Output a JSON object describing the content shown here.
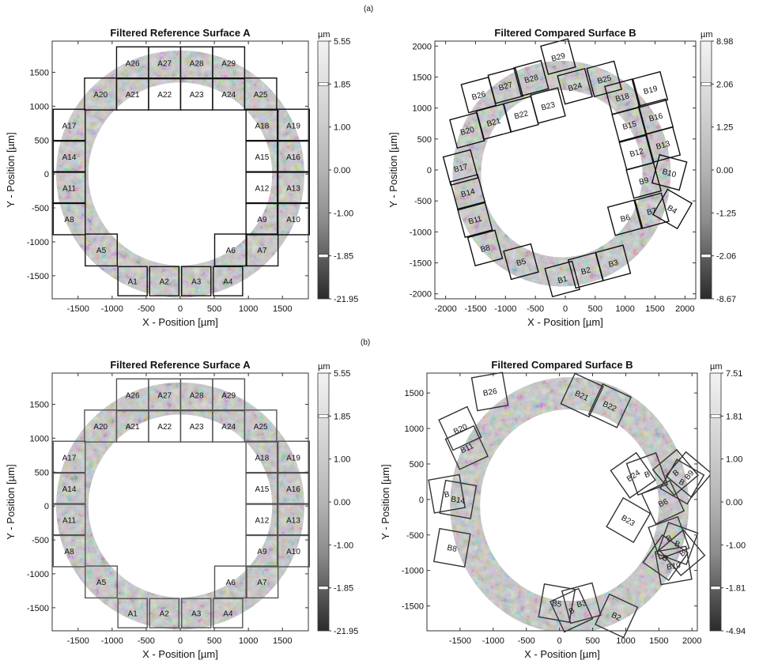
{
  "figure": {
    "label_a": "(a)",
    "label_b": "(b)"
  },
  "colorbar_unit": "µm",
  "axis_labels": {
    "x": "X - Position [µm]",
    "y": "Y - Position [µm]"
  },
  "chart_data": [
    {
      "id": "a-left",
      "type": "heatmap",
      "title": "Filtered Reference Surface A",
      "xlim": [
        -1880,
        1880
      ],
      "ylim": [
        -1840,
        1960
      ],
      "xticks": [
        -1500,
        -1000,
        -500,
        0,
        500,
        1000,
        1500
      ],
      "yticks": [
        -1500,
        -1000,
        -500,
        0,
        500,
        1000,
        1500
      ],
      "ring": {
        "inner_radius": 1350,
        "outer_radius": 1820
      },
      "colorbar": {
        "ticks": [
          "5.55",
          "1.85",
          "1.00",
          "0.00",
          "-1.00",
          "-1.85",
          "-21.95"
        ],
        "marker_top": 1,
        "marker_bottom": 5
      },
      "box_color": "#111",
      "boxes": [
        {
          "label": "A1",
          "cx": -700,
          "cy": -1580,
          "size": 430,
          "rot": 0
        },
        {
          "label": "A2",
          "cx": -235,
          "cy": -1580,
          "size": 430,
          "rot": 0
        },
        {
          "label": "A3",
          "cx": 235,
          "cy": -1580,
          "size": 430,
          "rot": 0
        },
        {
          "label": "A4",
          "cx": 700,
          "cy": -1580,
          "size": 430,
          "rot": 0
        },
        {
          "label": "A5",
          "cx": -1160,
          "cy": -1120,
          "size": 470,
          "rot": 0
        },
        {
          "label": "A6",
          "cx": 740,
          "cy": -1120,
          "size": 470,
          "rot": 0
        },
        {
          "label": "A7",
          "cx": 1200,
          "cy": -1120,
          "size": 470,
          "rot": 0
        },
        {
          "label": "A8",
          "cx": -1630,
          "cy": -660,
          "size": 470,
          "rot": 0
        },
        {
          "label": "A9",
          "cx": 1200,
          "cy": -660,
          "size": 470,
          "rot": 0
        },
        {
          "label": "A10",
          "cx": 1660,
          "cy": -660,
          "size": 470,
          "rot": 0
        },
        {
          "label": "A11",
          "cx": -1630,
          "cy": -200,
          "size": 470,
          "rot": 0
        },
        {
          "label": "A12",
          "cx": 1200,
          "cy": -200,
          "size": 470,
          "rot": 0
        },
        {
          "label": "A13",
          "cx": 1660,
          "cy": -200,
          "size": 470,
          "rot": 0
        },
        {
          "label": "A14",
          "cx": -1630,
          "cy": 260,
          "size": 470,
          "rot": 0
        },
        {
          "label": "A15",
          "cx": 1200,
          "cy": 260,
          "size": 470,
          "rot": 0
        },
        {
          "label": "A16",
          "cx": 1660,
          "cy": 260,
          "size": 470,
          "rot": 0
        },
        {
          "label": "A17",
          "cx": -1630,
          "cy": 720,
          "size": 470,
          "rot": 0
        },
        {
          "label": "A18",
          "cx": 1200,
          "cy": 720,
          "size": 470,
          "rot": 0
        },
        {
          "label": "A19",
          "cx": 1660,
          "cy": 720,
          "size": 470,
          "rot": 0
        },
        {
          "label": "A20",
          "cx": -1170,
          "cy": 1180,
          "size": 470,
          "rot": 0
        },
        {
          "label": "A21",
          "cx": -700,
          "cy": 1180,
          "size": 470,
          "rot": 0
        },
        {
          "label": "A22",
          "cx": -230,
          "cy": 1180,
          "size": 470,
          "rot": 0
        },
        {
          "label": "A23",
          "cx": 240,
          "cy": 1180,
          "size": 470,
          "rot": 0
        },
        {
          "label": "A24",
          "cx": 710,
          "cy": 1180,
          "size": 470,
          "rot": 0
        },
        {
          "label": "A25",
          "cx": 1180,
          "cy": 1180,
          "size": 470,
          "rot": 0
        },
        {
          "label": "A26",
          "cx": -700,
          "cy": 1640,
          "size": 470,
          "rot": 0
        },
        {
          "label": "A27",
          "cx": -230,
          "cy": 1640,
          "size": 470,
          "rot": 0
        },
        {
          "label": "A28",
          "cx": 240,
          "cy": 1640,
          "size": 470,
          "rot": 0
        },
        {
          "label": "A29",
          "cx": 710,
          "cy": 1640,
          "size": 470,
          "rot": 0
        }
      ]
    },
    {
      "id": "a-right",
      "type": "heatmap",
      "title": "Filtered Compared Surface B",
      "xlim": [
        -2180,
        2180
      ],
      "ylim": [
        -2080,
        2080
      ],
      "xticks": [
        -2000,
        -1500,
        -1000,
        -500,
        0,
        500,
        1000,
        1500,
        2000
      ],
      "yticks": [
        -2000,
        -1500,
        -1000,
        -500,
        0,
        500,
        1000,
        1500,
        2000
      ],
      "ring": {
        "inner_radius": 1350,
        "outer_radius": 1820,
        "cx": -60,
        "cy": -60
      },
      "colorbar": {
        "ticks": [
          "8.98",
          "2.06",
          "1.25",
          "0.00",
          "-1.25",
          "-2.06",
          "-8.67"
        ],
        "marker_top": 1,
        "marker_bottom": 5
      },
      "box_color": "#111",
      "boxes": [
        {
          "label": "B1",
          "cx": -50,
          "cy": -1760,
          "size": 470,
          "rot": 15
        },
        {
          "label": "B2",
          "cx": 340,
          "cy": -1620,
          "size": 470,
          "rot": 15
        },
        {
          "label": "B3",
          "cx": 800,
          "cy": -1500,
          "size": 470,
          "rot": 15
        },
        {
          "label": "B4",
          "cx": 1790,
          "cy": -630,
          "size": 470,
          "rot": -30
        },
        {
          "label": "B5",
          "cx": -740,
          "cy": -1480,
          "size": 470,
          "rot": 15
        },
        {
          "label": "B6",
          "cx": 1000,
          "cy": -770,
          "size": 470,
          "rot": 15
        },
        {
          "label": "B7",
          "cx": 1440,
          "cy": -660,
          "size": 470,
          "rot": 15
        },
        {
          "label": "B8",
          "cx": -1340,
          "cy": -1260,
          "size": 470,
          "rot": 15
        },
        {
          "label": "B9",
          "cx": 1310,
          "cy": -170,
          "size": 470,
          "rot": 15
        },
        {
          "label": "B10",
          "cx": 1740,
          "cy": -40,
          "size": 470,
          "rot": -15
        },
        {
          "label": "B11",
          "cx": -1510,
          "cy": -800,
          "size": 470,
          "rot": 15
        },
        {
          "label": "B12",
          "cx": 1190,
          "cy": 290,
          "size": 470,
          "rot": 15
        },
        {
          "label": "B13",
          "cx": 1630,
          "cy": 410,
          "size": 470,
          "rot": 15
        },
        {
          "label": "B14",
          "cx": -1630,
          "cy": -360,
          "size": 470,
          "rot": 15
        },
        {
          "label": "B15",
          "cx": 1070,
          "cy": 730,
          "size": 470,
          "rot": 15
        },
        {
          "label": "B16",
          "cx": 1510,
          "cy": 860,
          "size": 470,
          "rot": 15
        },
        {
          "label": "B17",
          "cx": -1750,
          "cy": 40,
          "size": 470,
          "rot": 15
        },
        {
          "label": "B18",
          "cx": 950,
          "cy": 1180,
          "size": 470,
          "rot": 15
        },
        {
          "label": "B19",
          "cx": 1420,
          "cy": 1300,
          "size": 470,
          "rot": 15
        },
        {
          "label": "B20",
          "cx": -1640,
          "cy": 640,
          "size": 470,
          "rot": 15
        },
        {
          "label": "B21",
          "cx": -1200,
          "cy": 780,
          "size": 470,
          "rot": 15
        },
        {
          "label": "B22",
          "cx": -740,
          "cy": 900,
          "size": 470,
          "rot": 15
        },
        {
          "label": "B23",
          "cx": -290,
          "cy": 1040,
          "size": 470,
          "rot": 15
        },
        {
          "label": "B24",
          "cx": 160,
          "cy": 1350,
          "size": 470,
          "rot": 15
        },
        {
          "label": "B25",
          "cx": 650,
          "cy": 1470,
          "size": 470,
          "rot": 15
        },
        {
          "label": "B26",
          "cx": -1450,
          "cy": 1210,
          "size": 470,
          "rot": 15
        },
        {
          "label": "B27",
          "cx": -1000,
          "cy": 1360,
          "size": 470,
          "rot": 15
        },
        {
          "label": "B28",
          "cx": -570,
          "cy": 1480,
          "size": 470,
          "rot": 15
        },
        {
          "label": "B29",
          "cx": -120,
          "cy": 1830,
          "size": 470,
          "rot": 15
        }
      ]
    },
    {
      "id": "b-left",
      "type": "heatmap",
      "title": "Filtered Reference Surface A",
      "xlim": [
        -1880,
        1880
      ],
      "ylim": [
        -1840,
        1960
      ],
      "xticks": [
        -1500,
        -1000,
        -500,
        0,
        500,
        1000,
        1500
      ],
      "yticks": [
        -1500,
        -1000,
        -500,
        0,
        500,
        1000,
        1500
      ],
      "ring": {
        "inner_radius": 1350,
        "outer_radius": 1820
      },
      "colorbar": {
        "ticks": [
          "5.55",
          "1.85",
          "1.00",
          "0.00",
          "-1.00",
          "-1.85",
          "-21.95"
        ],
        "marker_top": 1,
        "marker_bottom": 5
      },
      "box_color": "#555",
      "boxes": [
        {
          "label": "A1",
          "cx": -700,
          "cy": -1580,
          "size": 430,
          "rot": 0
        },
        {
          "label": "A2",
          "cx": -235,
          "cy": -1580,
          "size": 430,
          "rot": 0
        },
        {
          "label": "A3",
          "cx": 235,
          "cy": -1580,
          "size": 430,
          "rot": 0
        },
        {
          "label": "A4",
          "cx": 700,
          "cy": -1580,
          "size": 430,
          "rot": 0
        },
        {
          "label": "A5",
          "cx": -1160,
          "cy": -1120,
          "size": 470,
          "rot": 0
        },
        {
          "label": "A6",
          "cx": 740,
          "cy": -1120,
          "size": 470,
          "rot": 0
        },
        {
          "label": "A7",
          "cx": 1200,
          "cy": -1120,
          "size": 470,
          "rot": 0
        },
        {
          "label": "A8",
          "cx": -1630,
          "cy": -660,
          "size": 470,
          "rot": 0
        },
        {
          "label": "A9",
          "cx": 1200,
          "cy": -660,
          "size": 470,
          "rot": 0
        },
        {
          "label": "A10",
          "cx": 1660,
          "cy": -660,
          "size": 470,
          "rot": 0
        },
        {
          "label": "A11",
          "cx": -1630,
          "cy": -200,
          "size": 470,
          "rot": 0
        },
        {
          "label": "A12",
          "cx": 1200,
          "cy": -200,
          "size": 470,
          "rot": 0
        },
        {
          "label": "A13",
          "cx": 1660,
          "cy": -200,
          "size": 470,
          "rot": 0
        },
        {
          "label": "A14",
          "cx": -1630,
          "cy": 260,
          "size": 470,
          "rot": 0
        },
        {
          "label": "A15",
          "cx": 1200,
          "cy": 260,
          "size": 470,
          "rot": 0
        },
        {
          "label": "A16",
          "cx": 1660,
          "cy": 260,
          "size": 470,
          "rot": 0
        },
        {
          "label": "A17",
          "cx": -1630,
          "cy": 720,
          "size": 470,
          "rot": 0
        },
        {
          "label": "A18",
          "cx": 1200,
          "cy": 720,
          "size": 470,
          "rot": 0
        },
        {
          "label": "A19",
          "cx": 1660,
          "cy": 720,
          "size": 470,
          "rot": 0
        },
        {
          "label": "A20",
          "cx": -1170,
          "cy": 1180,
          "size": 470,
          "rot": 0
        },
        {
          "label": "A21",
          "cx": -700,
          "cy": 1180,
          "size": 470,
          "rot": 0
        },
        {
          "label": "A22",
          "cx": -230,
          "cy": 1180,
          "size": 470,
          "rot": 0
        },
        {
          "label": "A23",
          "cx": 240,
          "cy": 1180,
          "size": 470,
          "rot": 0
        },
        {
          "label": "A24",
          "cx": 710,
          "cy": 1180,
          "size": 470,
          "rot": 0
        },
        {
          "label": "A25",
          "cx": 1180,
          "cy": 1180,
          "size": 470,
          "rot": 0
        },
        {
          "label": "A26",
          "cx": -700,
          "cy": 1640,
          "size": 470,
          "rot": 0
        },
        {
          "label": "A27",
          "cx": -230,
          "cy": 1640,
          "size": 470,
          "rot": 0
        },
        {
          "label": "A28",
          "cx": 240,
          "cy": 1640,
          "size": 470,
          "rot": 0
        },
        {
          "label": "A29",
          "cx": 710,
          "cy": 1640,
          "size": 470,
          "rot": 0
        }
      ]
    },
    {
      "id": "b-right",
      "type": "heatmap",
      "title": "Filtered Compared Surface B",
      "xlim": [
        -2000,
        2080
      ],
      "ylim": [
        -1850,
        1780
      ],
      "xticks": [
        -1500,
        -1000,
        -500,
        0,
        500,
        1000,
        1500,
        2000
      ],
      "yticks": [
        -1500,
        -1000,
        -500,
        0,
        500,
        1000,
        1500
      ],
      "ring": {
        "inner_radius": 1350,
        "outer_radius": 1800,
        "cx": 150,
        "cy": -80
      },
      "colorbar": {
        "ticks": [
          "7.51",
          "1.81",
          "1.00",
          "0.00",
          "-1.00",
          "-1.81",
          "-4.94"
        ],
        "marker_top": 1,
        "marker_bottom": 5
      },
      "box_color": "#333",
      "boxes": [
        {
          "label": "B26",
          "cx": -1050,
          "cy": 1520,
          "size": 470,
          "rot": 10
        },
        {
          "label": "B21",
          "cx": 340,
          "cy": 1470,
          "size": 470,
          "rot": -25
        },
        {
          "label": "B22",
          "cx": 760,
          "cy": 1320,
          "size": 470,
          "rot": -25
        },
        {
          "label": "B20",
          "cx": -1500,
          "cy": 1000,
          "size": 470,
          "rot": 25
        },
        {
          "label": "B11",
          "cx": -1400,
          "cy": 730,
          "size": 470,
          "rot": 25
        },
        {
          "label": "B",
          "cx": -1700,
          "cy": 80,
          "size": 470,
          "rot": 10
        },
        {
          "label": "B14",
          "cx": -1530,
          "cy": 0,
          "size": 470,
          "rot": -10
        },
        {
          "label": "B8",
          "cx": -1620,
          "cy": -680,
          "size": 470,
          "rot": -10
        },
        {
          "label": "B24",
          "cx": 1110,
          "cy": 340,
          "size": 470,
          "rot": 35
        },
        {
          "label": "B",
          "cx": 1320,
          "cy": 360,
          "size": 470,
          "rot": 20
        },
        {
          "label": "B",
          "cx": 1750,
          "cy": 380,
          "size": 470,
          "rot": 40
        },
        {
          "label": "B9",
          "cx": 1950,
          "cy": 350,
          "size": 470,
          "rot": 50
        },
        {
          "label": "B",
          "cx": 1850,
          "cy": 250,
          "size": 470,
          "rot": -30
        },
        {
          "label": "B6",
          "cx": 1560,
          "cy": -40,
          "size": 470,
          "rot": 25
        },
        {
          "label": "B23",
          "cx": 1040,
          "cy": -290,
          "size": 470,
          "rot": -30
        },
        {
          "label": "B",
          "cx": 1650,
          "cy": -540,
          "size": 470,
          "rot": 20
        },
        {
          "label": "B",
          "cx": 1780,
          "cy": -620,
          "size": 470,
          "rot": -20
        },
        {
          "label": "B",
          "cx": 1850,
          "cy": -750,
          "size": 470,
          "rot": 40
        },
        {
          "label": "B10",
          "cx": 1720,
          "cy": -930,
          "size": 470,
          "rot": 10
        },
        {
          "label": "B",
          "cx": 1600,
          "cy": -820,
          "size": 470,
          "rot": -35
        },
        {
          "label": "B5",
          "cx": -40,
          "cy": -1460,
          "size": 470,
          "rot": -10
        },
        {
          "label": "B3",
          "cx": 330,
          "cy": -1460,
          "size": 470,
          "rot": 15
        },
        {
          "label": "B",
          "cx": 180,
          "cy": -1560,
          "size": 470,
          "rot": 25
        },
        {
          "label": "B2",
          "cx": 860,
          "cy": -1640,
          "size": 470,
          "rot": -25
        }
      ]
    }
  ]
}
